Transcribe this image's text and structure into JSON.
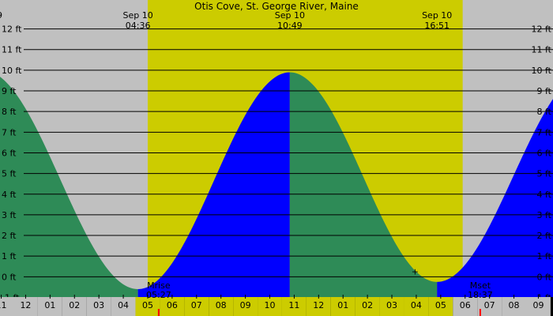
{
  "chart_data": {
    "type": "area",
    "title": "Otis Cove, St. George River, Maine",
    "title_date_left_fragment": "9",
    "yunit": "ft",
    "ylim": [
      -1.9,
      13.4
    ],
    "xlim_hours": [
      -1.05,
      21.6
    ],
    "y_ticks": [
      {
        "value": 12,
        "label": "12 ft"
      },
      {
        "value": 11,
        "label": "11 ft"
      },
      {
        "value": 10,
        "label": "10 ft"
      },
      {
        "value": 9,
        "label": "9 ft"
      },
      {
        "value": 8,
        "label": "8 ft"
      },
      {
        "value": 7,
        "label": "7 ft"
      },
      {
        "value": 6,
        "label": "6 ft"
      },
      {
        "value": 5,
        "label": "5 ft"
      },
      {
        "value": 4,
        "label": "4 ft"
      },
      {
        "value": 3,
        "label": "3 ft"
      },
      {
        "value": 2,
        "label": "2 ft"
      },
      {
        "value": 1,
        "label": "1 ft"
      },
      {
        "value": 0,
        "label": "0 ft"
      },
      {
        "value": -1,
        "label": "-1 ft"
      }
    ],
    "x_ticks": [
      {
        "hour": -1,
        "label": "11"
      },
      {
        "hour": 0,
        "label": "12"
      },
      {
        "hour": 1,
        "label": "01"
      },
      {
        "hour": 2,
        "label": "02"
      },
      {
        "hour": 3,
        "label": "03"
      },
      {
        "hour": 4,
        "label": "04"
      },
      {
        "hour": 5,
        "label": "05"
      },
      {
        "hour": 6,
        "label": "06"
      },
      {
        "hour": 7,
        "label": "07"
      },
      {
        "hour": 8,
        "label": "08"
      },
      {
        "hour": 9,
        "label": "09"
      },
      {
        "hour": 10,
        "label": "10"
      },
      {
        "hour": 11,
        "label": "11"
      },
      {
        "hour": 12,
        "label": "12"
      },
      {
        "hour": 13,
        "label": "01"
      },
      {
        "hour": 14,
        "label": "02"
      },
      {
        "hour": 15,
        "label": "03"
      },
      {
        "hour": 16,
        "label": "04"
      },
      {
        "hour": 17,
        "label": "05"
      },
      {
        "hour": 18,
        "label": "06"
      },
      {
        "hour": 19,
        "label": "07"
      },
      {
        "hour": 20,
        "label": "08"
      },
      {
        "hour": 21,
        "label": "09"
      }
    ],
    "tide_extremes": [
      {
        "kind": "high",
        "hour": -1.75,
        "height": 10.0
      },
      {
        "kind": "low",
        "hour": 4.6,
        "date": "Sep 10",
        "time": "04:36",
        "height": -0.6
      },
      {
        "kind": "high",
        "hour": 10.82,
        "date": "Sep 10",
        "time": "10:49",
        "height": 9.9
      },
      {
        "kind": "low",
        "hour": 16.85,
        "date": "Sep 10",
        "time": "16:51",
        "height": -0.25
      },
      {
        "kind": "high",
        "hour": 23.1,
        "height": 10.0
      }
    ],
    "daylight": {
      "start_hour": 5.0,
      "end_hour": 17.9
    },
    "moon_events": [
      {
        "label": "Mrise",
        "time": "05:27",
        "hour": 5.45
      },
      {
        "label": "Mset",
        "time": "18:37",
        "hour": 18.62
      }
    ],
    "marker": {
      "symbol": "+",
      "hour": 15.95,
      "height": 0.3
    },
    "colors": {
      "night": "#c0c0c0",
      "day": "#cccc00",
      "rising": "#0000ff",
      "falling": "#2e8b57",
      "grid": "#000000",
      "moon_tick": "#ff0000"
    }
  }
}
